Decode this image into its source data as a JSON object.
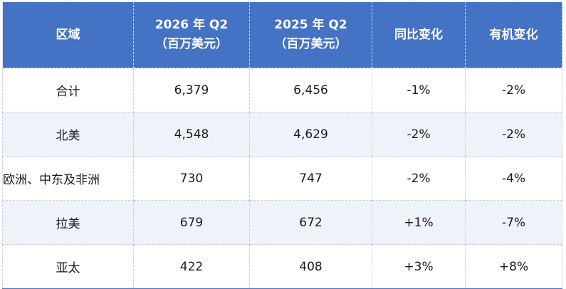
{
  "table": {
    "headers": [
      {
        "line1": "区域",
        "line2": ""
      },
      {
        "line1": "2026 年 Q2",
        "line2": "（百万美元）"
      },
      {
        "line1": "2025 年 Q2",
        "line2": "（百万美元）"
      },
      {
        "line1": "同比变化",
        "line2": ""
      },
      {
        "line1": "有机变化",
        "line2": ""
      }
    ],
    "rows": [
      {
        "region": "合计",
        "q2_2026": "6,379",
        "q2_2025": "6,456",
        "yoy": "-1%",
        "organic": "-2%"
      },
      {
        "region": "北美",
        "q2_2026": "4,548",
        "q2_2025": "4,629",
        "yoy": "-2%",
        "organic": "-2%"
      },
      {
        "region": "欧洲、中东及非洲",
        "q2_2026": "730",
        "q2_2025": "747",
        "yoy": "-2%",
        "organic": "-4%"
      },
      {
        "region": "拉美",
        "q2_2026": "679",
        "q2_2025": "672",
        "yoy": "+1%",
        "organic": "-7%"
      },
      {
        "region": "亚太",
        "q2_2026": "422",
        "q2_2025": "408",
        "yoy": "+3%",
        "organic": "+8%"
      }
    ]
  },
  "colors": {
    "header_bg": "#4472c4",
    "header_text": "#ffffff",
    "alt_row_bg": "#eef2f9",
    "row_bg": "#ffffff"
  }
}
